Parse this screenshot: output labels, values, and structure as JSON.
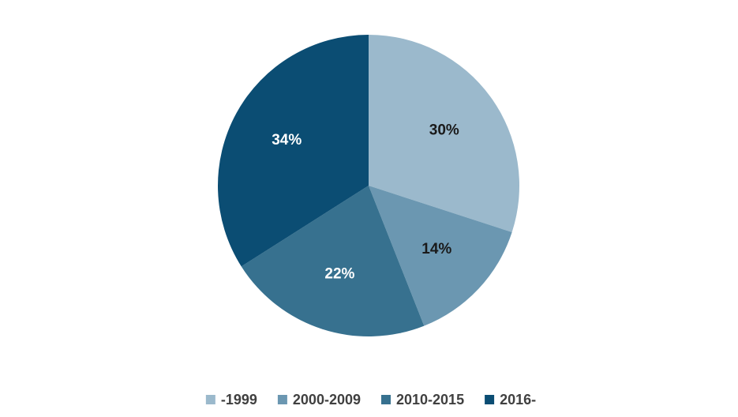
{
  "chart_data": {
    "type": "pie",
    "title": "",
    "categories": [
      "-1999",
      "2000-2009",
      "2010-2015",
      "2016-"
    ],
    "values": [
      30,
      14,
      22,
      34
    ],
    "value_labels": [
      "30%",
      "14%",
      "22%",
      "34%"
    ],
    "colors": [
      "#9bb9cc",
      "#6b97b1",
      "#37718f",
      "#0b4d73"
    ],
    "label_colors": [
      "#1a1a1a",
      "#1a1a1a",
      "#ffffff",
      "#ffffff"
    ],
    "legend_position": "bottom",
    "start_angle": "12 o'clock",
    "direction": "clockwise"
  }
}
